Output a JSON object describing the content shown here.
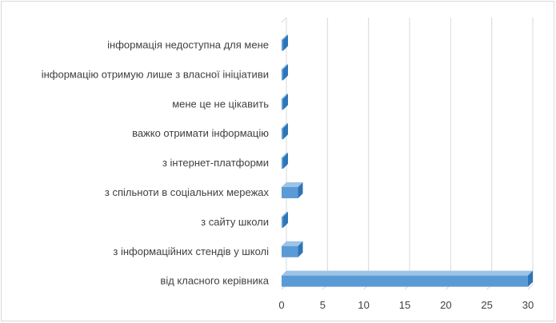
{
  "chart_data": {
    "type": "bar",
    "orientation": "horizontal",
    "style": "3d",
    "categories": [
      "інформація недоступна для мене",
      "інформацію отримую лише з власної ініціативи",
      "мене це не цікавить",
      "важко отримати інформацію",
      "з  інтернет-платформи",
      "з спільноти в соціальних мережах",
      "з сайту школи",
      "з інформаційних стендів у школі",
      "від класного керівника"
    ],
    "values": [
      0,
      0,
      0,
      0,
      0,
      2,
      0,
      2,
      30
    ],
    "xlim": [
      0,
      30
    ],
    "xticks": [
      0,
      5,
      10,
      15,
      20,
      25,
      30
    ],
    "grid": true,
    "legend": "none",
    "colors": {
      "bar_front": "#5b9bd5",
      "bar_top": "#9dc3e6",
      "bar_side": "#2e75b6",
      "grid": "#d9d9d9",
      "text": "#404040"
    }
  }
}
